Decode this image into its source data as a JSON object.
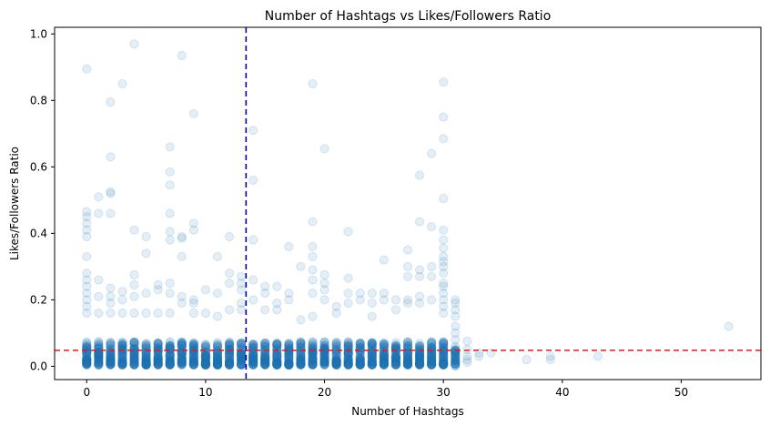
{
  "chart_data": {
    "type": "scatter",
    "title": "Number of Hashtags vs Likes/Followers Ratio",
    "xlabel": "Number of Hashtags",
    "ylabel": "Likes/Followers Ratio",
    "xlim": [
      -2.7,
      56.7
    ],
    "ylim": [
      -0.04,
      1.02
    ],
    "xticks": [
      0,
      10,
      20,
      30,
      40,
      50
    ],
    "yticks": [
      0.0,
      0.2,
      0.4,
      0.6,
      0.8,
      1.0
    ],
    "xtick_labels": [
      "0",
      "10",
      "20",
      "30",
      "40",
      "50"
    ],
    "ytick_labels": [
      "0.0",
      "0.2",
      "0.4",
      "0.6",
      "0.8",
      "1.0"
    ],
    "grid": false,
    "point_color": "#1f77b4",
    "point_alpha": 0.12,
    "dense_band_max": 0.07,
    "reference_lines": [
      {
        "orientation": "vertical",
        "value": 13.4,
        "color": "#0000cc",
        "style": "dashed"
      },
      {
        "orientation": "horizontal",
        "value": 0.048,
        "color": "#e31a1c",
        "style": "dashed"
      }
    ],
    "points": [
      [
        0,
        0.895
      ],
      [
        0,
        0.465
      ],
      [
        0,
        0.45
      ],
      [
        0,
        0.43
      ],
      [
        0,
        0.41
      ],
      [
        0,
        0.39
      ],
      [
        0,
        0.33
      ],
      [
        0,
        0.28
      ],
      [
        0,
        0.26
      ],
      [
        0,
        0.24
      ],
      [
        0,
        0.22
      ],
      [
        0,
        0.2
      ],
      [
        0,
        0.18
      ],
      [
        0,
        0.16
      ],
      [
        1,
        0.51
      ],
      [
        1,
        0.46
      ],
      [
        1,
        0.26
      ],
      [
        1,
        0.21
      ],
      [
        1,
        0.16
      ],
      [
        2,
        0.795
      ],
      [
        2,
        0.63
      ],
      [
        2,
        0.525
      ],
      [
        2,
        0.52
      ],
      [
        2,
        0.46
      ],
      [
        2,
        0.235
      ],
      [
        2,
        0.21
      ],
      [
        2,
        0.19
      ],
      [
        2,
        0.16
      ],
      [
        3,
        0.85
      ],
      [
        3,
        0.225
      ],
      [
        3,
        0.2
      ],
      [
        3,
        0.16
      ],
      [
        4,
        0.97
      ],
      [
        4,
        0.41
      ],
      [
        4,
        0.275
      ],
      [
        4,
        0.245
      ],
      [
        4,
        0.21
      ],
      [
        4,
        0.16
      ],
      [
        5,
        0.39
      ],
      [
        5,
        0.34
      ],
      [
        5,
        0.22
      ],
      [
        5,
        0.16
      ],
      [
        6,
        0.245
      ],
      [
        6,
        0.23
      ],
      [
        6,
        0.16
      ],
      [
        7,
        0.66
      ],
      [
        7,
        0.585
      ],
      [
        7,
        0.545
      ],
      [
        7,
        0.46
      ],
      [
        7,
        0.405
      ],
      [
        7,
        0.38
      ],
      [
        7,
        0.25
      ],
      [
        7,
        0.22
      ],
      [
        7,
        0.16
      ],
      [
        8,
        0.935
      ],
      [
        8,
        0.39
      ],
      [
        8,
        0.385
      ],
      [
        8,
        0.33
      ],
      [
        8,
        0.21
      ],
      [
        8,
        0.19
      ],
      [
        9,
        0.76
      ],
      [
        9,
        0.43
      ],
      [
        9,
        0.41
      ],
      [
        9,
        0.2
      ],
      [
        9,
        0.19
      ],
      [
        9,
        0.16
      ],
      [
        10,
        0.23
      ],
      [
        10,
        0.16
      ],
      [
        11,
        0.33
      ],
      [
        11,
        0.22
      ],
      [
        11,
        0.15
      ],
      [
        12,
        0.39
      ],
      [
        12,
        0.28
      ],
      [
        12,
        0.25
      ],
      [
        12,
        0.17
      ],
      [
        13,
        0.27
      ],
      [
        13,
        0.25
      ],
      [
        13,
        0.23
      ],
      [
        13,
        0.19
      ],
      [
        13,
        0.17
      ],
      [
        14,
        0.71
      ],
      [
        14,
        0.56
      ],
      [
        14,
        0.38
      ],
      [
        14,
        0.26
      ],
      [
        14,
        0.2
      ],
      [
        15,
        0.24
      ],
      [
        15,
        0.22
      ],
      [
        15,
        0.17
      ],
      [
        16,
        0.24
      ],
      [
        16,
        0.19
      ],
      [
        16,
        0.17
      ],
      [
        17,
        0.36
      ],
      [
        17,
        0.22
      ],
      [
        17,
        0.2
      ],
      [
        18,
        0.3
      ],
      [
        18,
        0.14
      ],
      [
        19,
        0.85
      ],
      [
        19,
        0.435
      ],
      [
        19,
        0.36
      ],
      [
        19,
        0.33
      ],
      [
        19,
        0.29
      ],
      [
        19,
        0.26
      ],
      [
        19,
        0.22
      ],
      [
        19,
        0.15
      ],
      [
        20,
        0.655
      ],
      [
        20,
        0.275
      ],
      [
        20,
        0.25
      ],
      [
        20,
        0.23
      ],
      [
        20,
        0.2
      ],
      [
        21,
        0.18
      ],
      [
        21,
        0.16
      ],
      [
        22,
        0.405
      ],
      [
        22,
        0.265
      ],
      [
        22,
        0.22
      ],
      [
        22,
        0.19
      ],
      [
        23,
        0.22
      ],
      [
        23,
        0.2
      ],
      [
        24,
        0.22
      ],
      [
        24,
        0.19
      ],
      [
        24,
        0.15
      ],
      [
        25,
        0.32
      ],
      [
        25,
        0.22
      ],
      [
        25,
        0.2
      ],
      [
        26,
        0.2
      ],
      [
        26,
        0.17
      ],
      [
        27,
        0.35
      ],
      [
        27,
        0.3
      ],
      [
        27,
        0.27
      ],
      [
        27,
        0.2
      ],
      [
        27,
        0.19
      ],
      [
        28,
        0.575
      ],
      [
        28,
        0.435
      ],
      [
        28,
        0.29
      ],
      [
        28,
        0.27
      ],
      [
        28,
        0.21
      ],
      [
        28,
        0.19
      ],
      [
        29,
        0.64
      ],
      [
        29,
        0.42
      ],
      [
        29,
        0.3
      ],
      [
        29,
        0.27
      ],
      [
        29,
        0.2
      ],
      [
        30,
        0.855
      ],
      [
        30,
        0.75
      ],
      [
        30,
        0.685
      ],
      [
        30,
        0.505
      ],
      [
        30,
        0.41
      ],
      [
        30,
        0.38
      ],
      [
        30,
        0.355
      ],
      [
        30,
        0.33
      ],
      [
        30,
        0.315
      ],
      [
        30,
        0.3
      ],
      [
        30,
        0.28
      ],
      [
        30,
        0.25
      ],
      [
        30,
        0.24
      ],
      [
        30,
        0.22
      ],
      [
        30,
        0.2
      ],
      [
        30,
        0.18
      ],
      [
        30,
        0.16
      ],
      [
        31,
        0.2
      ],
      [
        31,
        0.19
      ],
      [
        31,
        0.17
      ],
      [
        31,
        0.15
      ],
      [
        31,
        0.12
      ],
      [
        31,
        0.1
      ],
      [
        31,
        0.08
      ],
      [
        31,
        0.06
      ],
      [
        31,
        0.04
      ],
      [
        31,
        0.02
      ],
      [
        32,
        0.075
      ],
      [
        32,
        0.05
      ],
      [
        32,
        0.03
      ],
      [
        32,
        0.02
      ],
      [
        32,
        0.012
      ],
      [
        33,
        0.04
      ],
      [
        33,
        0.03
      ],
      [
        34,
        0.04
      ],
      [
        37,
        0.02
      ],
      [
        39,
        0.03
      ],
      [
        39,
        0.02
      ],
      [
        43,
        0.03
      ],
      [
        54,
        0.12
      ]
    ]
  }
}
